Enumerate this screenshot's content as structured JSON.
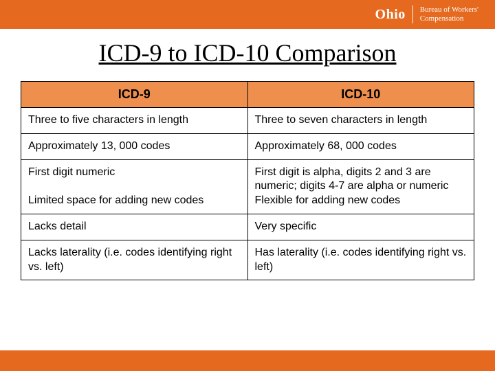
{
  "colors": {
    "brand_bar": "#e56a1f",
    "table_header_bg": "#ee8f4e",
    "table_border": "#000000",
    "text": "#000000",
    "header_text": "#ffffff",
    "page_bg": "#ffffff"
  },
  "header": {
    "state": "Ohio",
    "dept_line1": "Bureau of Workers'",
    "dept_line2": "Compensation"
  },
  "title": "ICD-9 to ICD-10 Comparison",
  "table": {
    "columns": [
      "ICD-9",
      "ICD-10"
    ],
    "rows": [
      [
        "Three to five characters in length",
        "Three to seven characters in length"
      ],
      [
        "Approximately 13, 000 codes",
        "Approximately 68, 000 codes"
      ],
      [
        "First digit numeric\n\nLimited space for adding new codes",
        "First digit is alpha, digits 2 and 3 are numeric; digits 4-7 are alpha or numeric\nFlexible for adding new codes"
      ],
      [
        "Lacks detail",
        "Very specific"
      ],
      [
        "Lacks laterality (i.e. codes identifying right vs. left)",
        "Has laterality (i.e. codes identifying right vs. left)"
      ]
    ],
    "header_fontsize": 18,
    "cell_fontsize": 16,
    "column_widths": [
      "50%",
      "50%"
    ]
  },
  "title_fontsize": 36
}
